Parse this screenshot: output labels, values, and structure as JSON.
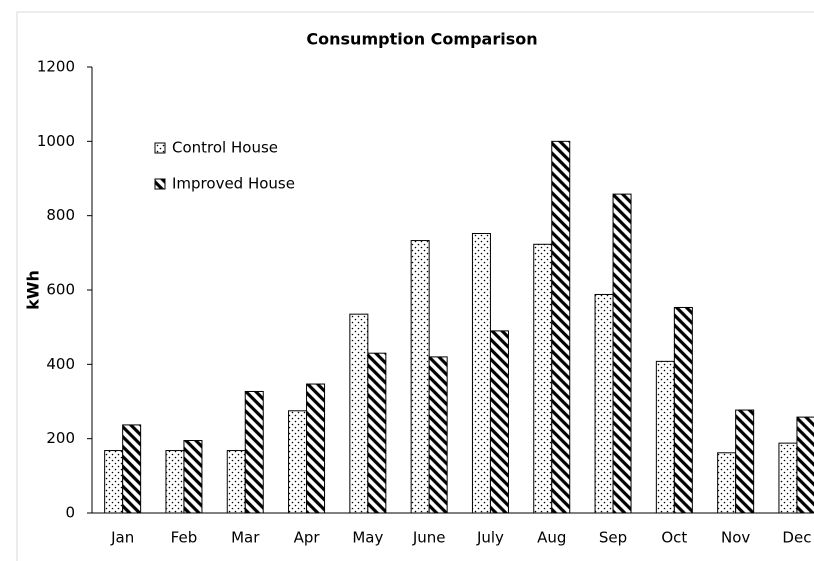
{
  "chart_data": {
    "type": "bar",
    "title": "Consumption Comparison",
    "y_label": "kWh",
    "categories": [
      "Jan",
      "Feb",
      "Mar",
      "Apr",
      "May",
      "June",
      "July",
      "Aug",
      "Sep",
      "Oct",
      "Nov",
      "Dec"
    ],
    "series": [
      {
        "name": "Control House",
        "pattern": "dots",
        "color": "#000000",
        "values": [
          168,
          168,
          168,
          275,
          535,
          733,
          752,
          723,
          588,
          408,
          162,
          188
        ]
      },
      {
        "name": "Improved House",
        "pattern": "hatch",
        "color": "#000000",
        "values": [
          237,
          195,
          327,
          347,
          430,
          420,
          490,
          1000,
          858,
          553,
          277,
          258
        ]
      }
    ],
    "ylim": [
      0,
      1200
    ],
    "yticks": [
      0,
      200,
      400,
      600,
      800,
      1000,
      1200
    ],
    "grid": false,
    "legend": "upper left"
  }
}
